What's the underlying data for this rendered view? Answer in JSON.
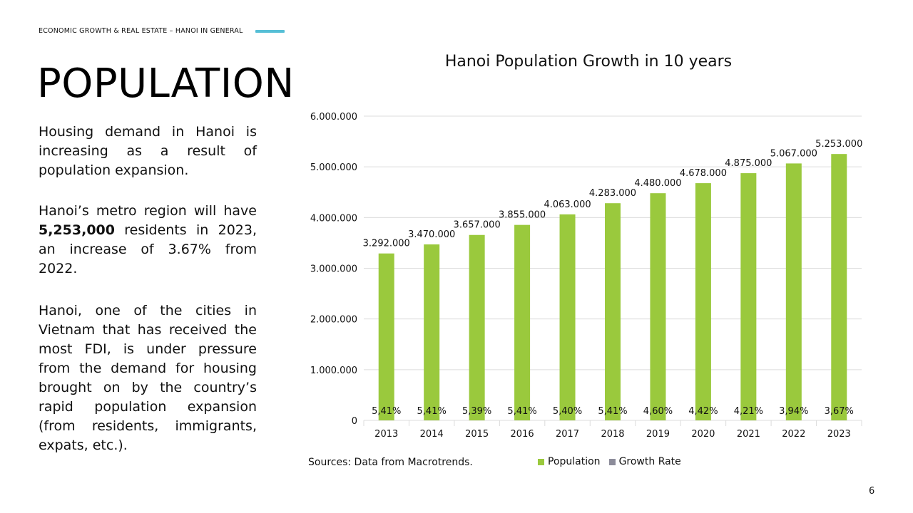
{
  "header": {
    "section_label": "ECONOMIC GROWTH & REAL ESTATE – HANOI IN GENERAL",
    "accent_color": "#56bfd6"
  },
  "page_title": "POPULATION",
  "paragraphs": {
    "p1": "Housing demand in Hanoi is increasing as a result of population expansion.",
    "p2_prefix": "Hanoi’s metro region will have ",
    "p2_bold": "5,253,000",
    "p2_suffix": " residents in 2023, an increase of 3.67% from 2022.",
    "p3": "Hanoi, one of the cities in Vietnam that has received the most FDI, is under pressure from the demand for housing brought on by the country’s rapid population expansion (from residents, immigrants, expats, etc.)."
  },
  "chart_data": {
    "type": "bar",
    "title": "Hanoi Population Growth in 10 years",
    "categories": [
      "2013",
      "2014",
      "2015",
      "2016",
      "2017",
      "2018",
      "2019",
      "2020",
      "2021",
      "2022",
      "2023"
    ],
    "series": [
      {
        "name": "Population",
        "values": [
          3292000,
          3470000,
          3657000,
          3855000,
          4063000,
          4283000,
          4480000,
          4678000,
          4875000,
          5067000,
          5253000
        ],
        "labels": [
          "3.292.000",
          "3.470.000",
          "3.657.000",
          "3.855.000",
          "4.063.000",
          "4.283.000",
          "4.480.000",
          "4.678.000",
          "4.875.000",
          "5.067.000",
          "5.253.000"
        ],
        "color": "#9ac93d"
      },
      {
        "name": "Growth Rate",
        "values": [
          5.41,
          5.41,
          5.39,
          5.41,
          5.4,
          5.41,
          4.6,
          4.42,
          4.21,
          3.94,
          3.67
        ],
        "labels": [
          "5,41%",
          "5,41%",
          "5,39%",
          "5,41%",
          "5,40%",
          "5,41%",
          "4,60%",
          "4,42%",
          "4,21%",
          "3,94%",
          "3,67%"
        ],
        "color": "#8c8c9a"
      }
    ],
    "ylim": [
      0,
      6000000
    ],
    "yticks": [
      0,
      1000000,
      2000000,
      3000000,
      4000000,
      5000000,
      6000000
    ],
    "ytick_labels": [
      "0",
      "1.000.000",
      "2.000.000",
      "3.000.000",
      "4.000.000",
      "5.000.000",
      "6.000.000"
    ],
    "grid": true,
    "legend_position": "bottom"
  },
  "source_note": "Sources: Data from Macrotrends.",
  "page_number": "6"
}
